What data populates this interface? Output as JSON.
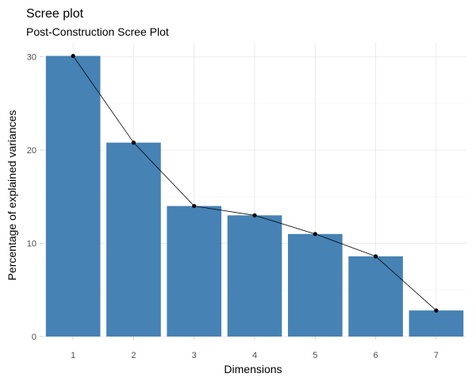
{
  "chart_data": {
    "type": "bar",
    "title": "Scree plot",
    "subtitle": "Post-Construction Scree Plot",
    "xlabel": "Dimensions",
    "ylabel": "Percentage of explained variances",
    "categories": [
      "1",
      "2",
      "3",
      "4",
      "5",
      "6",
      "7"
    ],
    "values": [
      30.1,
      20.8,
      14.0,
      13.0,
      11.0,
      8.6,
      2.8
    ],
    "overlay": "line-with-points",
    "ylim": [
      0,
      31.5
    ],
    "yticks": [
      0,
      10,
      20,
      30
    ],
    "grid": true,
    "legend": "none",
    "colors": {
      "bar": "#4682B4",
      "line": "#000000",
      "point": "#000000",
      "grid": "#EBEBEB"
    }
  }
}
